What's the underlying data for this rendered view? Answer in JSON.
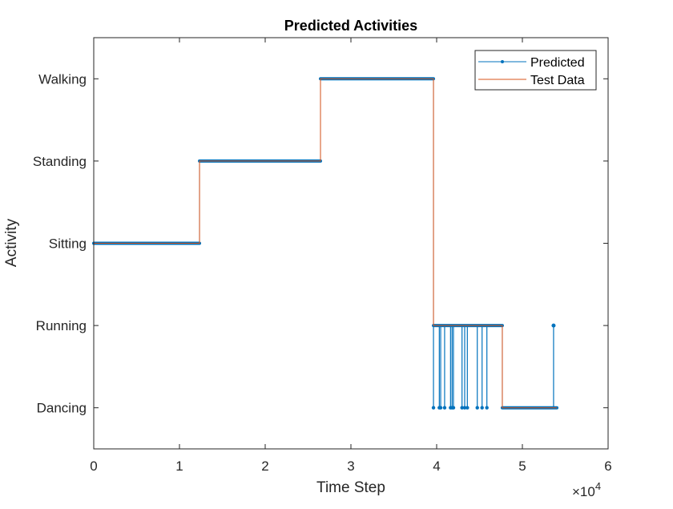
{
  "chart_data": {
    "type": "line",
    "title": "Predicted Activities",
    "xlabel": "Time Step",
    "ylabel": "Activity",
    "x_exponent_label": "×10",
    "x_exponent": "4",
    "xlim": [
      0,
      6
    ],
    "xticks": [
      0,
      1,
      2,
      3,
      4,
      5,
      6
    ],
    "xtick_labels": [
      "0",
      "1",
      "2",
      "3",
      "4",
      "5",
      "6"
    ],
    "ylim": [
      0.5,
      5.5
    ],
    "yticks": [
      1,
      2,
      3,
      4,
      5
    ],
    "ytick_labels": [
      "Dancing",
      "Running",
      "Sitting",
      "Standing",
      "Walking"
    ],
    "grid": false,
    "legend_position": "top-right",
    "series": [
      {
        "name": "Predicted",
        "color": "#0072BD",
        "marker": "dot",
        "segments": [
          {
            "start": 0,
            "end": 1.234,
            "value": 3
          },
          {
            "start": 1.234,
            "end": 2.645,
            "value": 4
          },
          {
            "start": 2.645,
            "end": 3.963,
            "value": 5
          },
          {
            "start": 3.963,
            "end": 4.766,
            "value": 2
          },
          {
            "start": 4.766,
            "end": 5.402,
            "value": 1
          }
        ],
        "dips_to_dancing": [
          3.963,
          4.031,
          4.047,
          4.093,
          4.162,
          4.18,
          4.196,
          4.296,
          4.327,
          4.358,
          4.474,
          4.53,
          4.586
        ],
        "spikes_to_running": [
          5.364
        ]
      },
      {
        "name": "Test Data",
        "color": "#D95319",
        "segments": [
          {
            "start": 0,
            "end": 1.234,
            "value": 3
          },
          {
            "start": 1.234,
            "end": 2.645,
            "value": 4
          },
          {
            "start": 2.645,
            "end": 3.963,
            "value": 5
          },
          {
            "start": 3.963,
            "end": 4.766,
            "value": 2
          },
          {
            "start": 4.766,
            "end": 5.402,
            "value": 1
          }
        ]
      }
    ]
  }
}
